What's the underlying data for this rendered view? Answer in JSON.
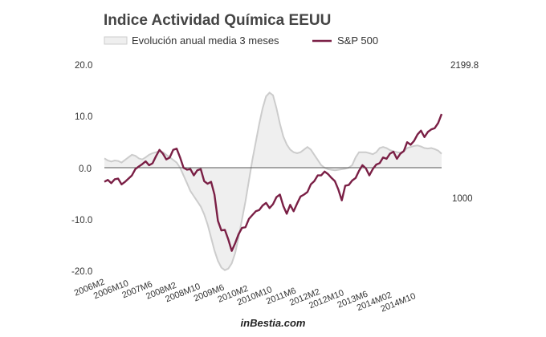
{
  "chart_data": {
    "type": "line",
    "title": "Indice Actividad Química EEUU",
    "source": "inBestia.com",
    "legend": [
      "Evolución anual media 3 meses",
      "S&P 500"
    ],
    "legend_position": "top",
    "x_tick_labels": [
      "2006M2",
      "2006M10",
      "2007M6",
      "2008M2",
      "2008M10",
      "2009M6",
      "2010M2",
      "2010M10",
      "2011M6",
      "2012M2",
      "2012M10",
      "2013M6",
      "2014M02",
      "2014M10"
    ],
    "left_axis": {
      "ticks": [
        "20.0",
        "10.0",
        "0.0",
        "-10.0",
        "-20.0"
      ],
      "ylim": [
        -20,
        20
      ]
    },
    "right_axis": {
      "labels": [
        "2199.8",
        "1000"
      ],
      "ylim": [
        581,
        2199.8
      ]
    },
    "colors": {
      "activity_fill": "#efefef",
      "activity_line": "#cccccc",
      "sp500": "#7a1f45",
      "zero_line": "#555555"
    },
    "x_start": "2006-01",
    "series": [
      {
        "name": "Evolución anual media 3 meses",
        "axis": "left",
        "style": "area",
        "values": [
          1.8,
          1.4,
          1.2,
          1.4,
          1.3,
          1.0,
          1.5,
          2.0,
          2.5,
          2.3,
          1.8,
          1.6,
          2.0,
          2.5,
          2.8,
          3.0,
          3.2,
          3.0,
          2.5,
          2.0,
          1.5,
          1.0,
          0.0,
          -1.5,
          -3.0,
          -4.5,
          -5.5,
          -6.5,
          -7.5,
          -9.0,
          -11.0,
          -13.5,
          -16.0,
          -18.0,
          -19.3,
          -19.8,
          -19.5,
          -18.5,
          -16.5,
          -13.5,
          -10.0,
          -6.5,
          -2.5,
          1.5,
          5.0,
          8.5,
          11.5,
          13.8,
          14.5,
          14.0,
          11.5,
          8.5,
          6.0,
          4.5,
          3.5,
          3.0,
          2.8,
          3.0,
          3.5,
          4.0,
          3.5,
          2.5,
          1.5,
          0.5,
          0.0,
          -0.3,
          -0.4,
          -0.5,
          -0.4,
          -0.3,
          -0.2,
          0.0,
          0.5,
          2.0,
          3.0,
          3.0,
          3.0,
          2.8,
          2.6,
          3.0,
          3.8,
          4.0,
          3.8,
          3.4,
          3.2,
          3.0,
          2.9,
          3.2,
          3.8,
          4.0,
          4.2,
          4.3,
          4.1,
          3.8,
          3.7,
          3.8,
          3.6,
          3.3,
          2.7
        ]
      },
      {
        "name": "S&P 500",
        "axis": "right",
        "style": "line",
        "values": [
          1280,
          1295,
          1270,
          1300,
          1305,
          1260,
          1280,
          1305,
          1330,
          1380,
          1400,
          1418,
          1440,
          1410,
          1425,
          1480,
          1530,
          1500,
          1455,
          1470,
          1530,
          1540,
          1470,
          1390,
          1375,
          1380,
          1330,
          1370,
          1380,
          1285,
          1265,
          1280,
          1180,
          975,
          900,
          905,
          830,
          740,
          800,
          870,
          920,
          925,
          990,
          1020,
          1050,
          1060,
          1095,
          1115,
          1075,
          1105,
          1160,
          1180,
          1090,
          1030,
          1100,
          1050,
          1110,
          1165,
          1180,
          1200,
          1260,
          1285,
          1330,
          1330,
          1360,
          1340,
          1310,
          1285,
          1220,
          1135,
          1250,
          1255,
          1290,
          1310,
          1365,
          1410,
          1385,
          1330,
          1380,
          1415,
          1426,
          1470,
          1460,
          1500,
          1515,
          1460,
          1500,
          1520,
          1590,
          1570,
          1600,
          1650,
          1680,
          1630,
          1670,
          1690,
          1700,
          1740,
          1810
        ]
      }
    ]
  }
}
